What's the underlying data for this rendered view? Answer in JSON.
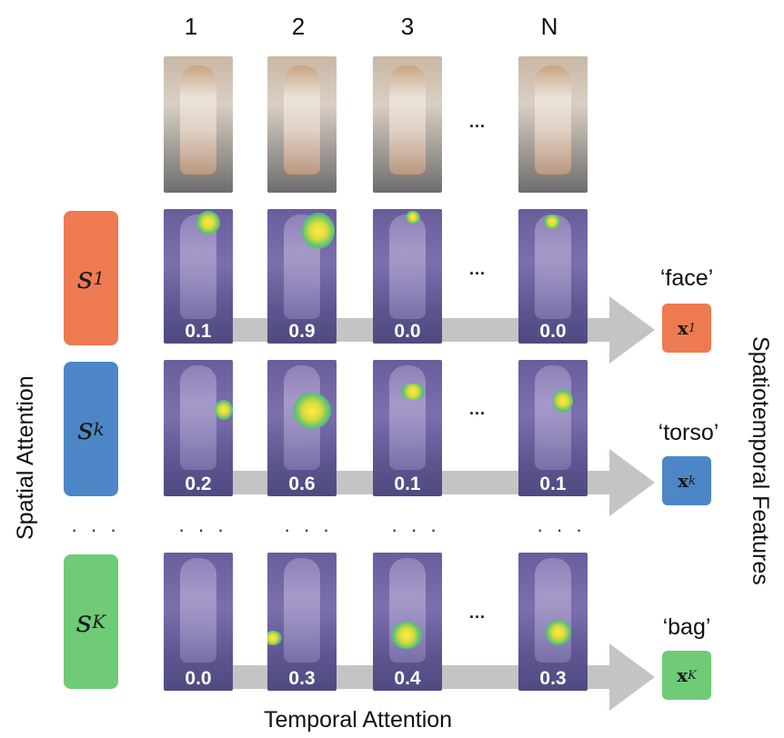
{
  "columns": [
    "1",
    "2",
    "3",
    "N"
  ],
  "ellipsis": "...",
  "vertical_dots": "· · ·",
  "rows": [
    {
      "id": "face",
      "s_base": "s",
      "s_sub": "1",
      "color": "#ee7a52",
      "scores": [
        "0.1",
        "0.9",
        "0.0",
        "0.0"
      ],
      "feature_label": "‘face’",
      "x_base": "x",
      "x_sub": "1"
    },
    {
      "id": "torso",
      "s_base": "s",
      "s_sub": "k",
      "color": "#4d86c6",
      "scores": [
        "0.2",
        "0.6",
        "0.1",
        "0.1"
      ],
      "feature_label": "‘torso’",
      "x_base": "x",
      "x_sub": "k"
    },
    {
      "id": "bag",
      "s_base": "s",
      "s_sub": "K",
      "color": "#6fcb76",
      "scores": [
        "0.0",
        "0.3",
        "0.4",
        "0.3"
      ],
      "feature_label": "‘bag’",
      "x_base": "x",
      "x_sub": "K"
    }
  ],
  "axis_labels": {
    "left": "Spatial Attention",
    "bottom": "Temporal Attention",
    "right": "Spatiotemporal Features"
  }
}
